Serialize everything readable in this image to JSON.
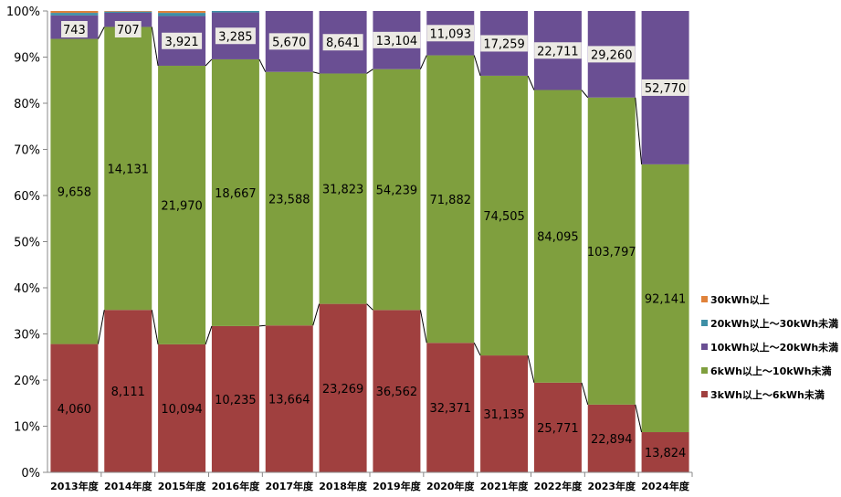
{
  "chart_data": {
    "type": "bar",
    "stacked": "percent",
    "categories": [
      "2013年度",
      "2014年度",
      "2015年度",
      "2016年度",
      "2017年度",
      "2018年度",
      "2019年度",
      "2020年度",
      "2021年度",
      "2022年度",
      "2023年度",
      "2024年度"
    ],
    "yticks": [
      "0%",
      "10%",
      "20%",
      "30%",
      "40%",
      "50%",
      "60%",
      "70%",
      "80%",
      "90%",
      "100%"
    ],
    "ylim": [
      0,
      100
    ],
    "legend_position": "right",
    "series": [
      {
        "name": "3kWh以上～6kWh未満",
        "color": "#a0403f",
        "values": [
          4060,
          8111,
          10094,
          10235,
          13664,
          23269,
          36562,
          32371,
          31135,
          25771,
          22894,
          13824
        ],
        "labels": [
          "4,060",
          "8,111",
          "10,094",
          "10,235",
          "13,664",
          "23,269",
          "36,562",
          "32,371",
          "31,135",
          "25,771",
          "22,894",
          "13,824"
        ]
      },
      {
        "name": "6kWh以上～10kWh未満",
        "color": "#7f9f3e",
        "values": [
          9658,
          14131,
          21970,
          18667,
          23588,
          31823,
          54239,
          71882,
          74505,
          84095,
          103797,
          92141
        ],
        "labels": [
          "9,658",
          "14,131",
          "21,970",
          "18,667",
          "23,588",
          "31,823",
          "54,239",
          "71,882",
          "74,505",
          "84,095",
          "103,797",
          "92,141"
        ]
      },
      {
        "name": "10kWh以上～20kWh未満",
        "color": "#6a4f93",
        "values": [
          743,
          707,
          3921,
          3285,
          5670,
          8641,
          13104,
          11093,
          17259,
          22711,
          29260,
          52770
        ],
        "labels": [
          "743",
          "707",
          "3,921",
          "3,285",
          "5,670",
          "8,641",
          "13,104",
          "11,093",
          "17,259",
          "22,711",
          "29,260",
          "52,770"
        ]
      },
      {
        "name": "20kWh以上～30kWh未満",
        "color": "#3e8fa6",
        "values": [
          80,
          60,
          250,
          100,
          0,
          0,
          0,
          0,
          0,
          0,
          0,
          0
        ],
        "labels": []
      },
      {
        "name": "30kWh以上",
        "color": "#e0823a",
        "values": [
          60,
          30,
          150,
          0,
          0,
          0,
          0,
          0,
          0,
          0,
          0,
          0
        ],
        "labels": []
      }
    ]
  }
}
